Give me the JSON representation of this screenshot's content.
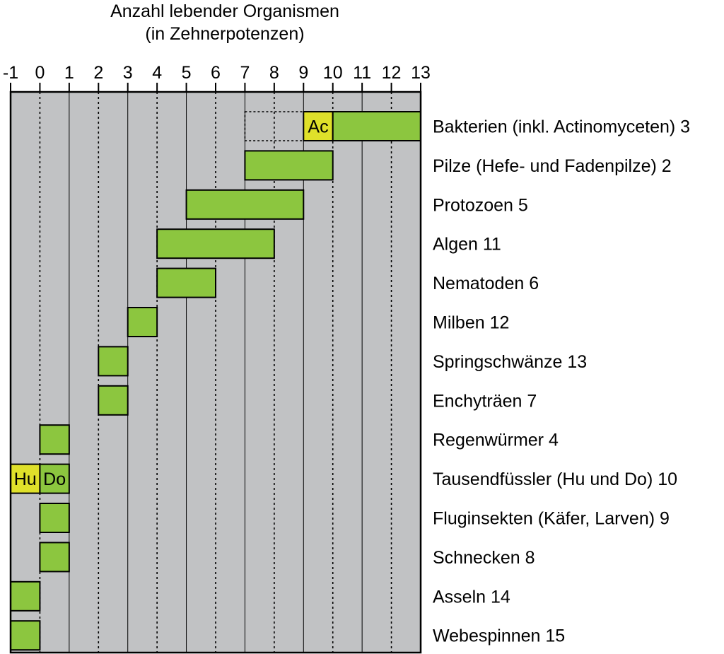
{
  "chart_data": {
    "type": "bar",
    "orientation": "horizontal",
    "title": [
      "Anzahl lebender Organismen",
      "(in Zehnerpotenzen)"
    ],
    "xlabel": "",
    "ylabel": "",
    "x_ticks": [
      "-1",
      "0",
      "1",
      "2",
      "3",
      "4",
      "5",
      "6",
      "7",
      "8",
      "9",
      "10",
      "11",
      "12",
      "13"
    ],
    "xlim": [
      -1,
      13
    ],
    "dashed_gridlines_at": [
      0,
      2,
      4,
      6,
      8,
      10,
      12
    ],
    "solid_gridlines_at": [
      1,
      3,
      5,
      7,
      9,
      11
    ],
    "colors": {
      "bar": "#8cc63f",
      "highlight": "#dfe02a",
      "plot_bg": "#c1c2c4",
      "border": "#000000"
    },
    "categories": [
      {
        "label": "Bakterien (inkl. Actinomyceten)",
        "number": "3",
        "range": [
          10,
          13
        ],
        "segments": [
          {
            "text": "Ac",
            "range": [
              9,
              10
            ]
          }
        ],
        "dotted_range": [
          7,
          9
        ]
      },
      {
        "label": "Pilze (Hefe- und Fadenpilze)",
        "number": "2",
        "range": [
          7,
          10
        ]
      },
      {
        "label": "Protozoen",
        "number": "5",
        "range": [
          5,
          9
        ]
      },
      {
        "label": "Algen",
        "number": "11",
        "range": [
          4,
          8
        ]
      },
      {
        "label": "Nematoden",
        "number": "6",
        "range": [
          4,
          6
        ]
      },
      {
        "label": "Milben",
        "number": "12",
        "range": [
          3,
          4
        ]
      },
      {
        "label": "Springschwänze",
        "number": "13",
        "range": [
          2,
          3
        ]
      },
      {
        "label": "Enchyträen",
        "number": "7",
        "range": [
          2,
          3
        ]
      },
      {
        "label": "Regenwürmer",
        "number": "4",
        "range": [
          0,
          1
        ]
      },
      {
        "label": "Tausendfüssler (Hu und Do)",
        "number": "10",
        "range": [
          0,
          1
        ],
        "segments": [
          {
            "text": "Hu",
            "range": [
              -1,
              0
            ]
          }
        ],
        "range_text": "Do"
      },
      {
        "label": "Fluginsekten (Käfer, Larven)",
        "number": "9",
        "range": [
          0,
          1
        ]
      },
      {
        "label": "Schnecken",
        "number": "8",
        "range": [
          0,
          1
        ]
      },
      {
        "label": "Asseln",
        "number": "14",
        "range": [
          -1,
          0
        ]
      },
      {
        "label": "Webespinnen",
        "number": "15",
        "range": [
          -1,
          0
        ]
      }
    ]
  }
}
